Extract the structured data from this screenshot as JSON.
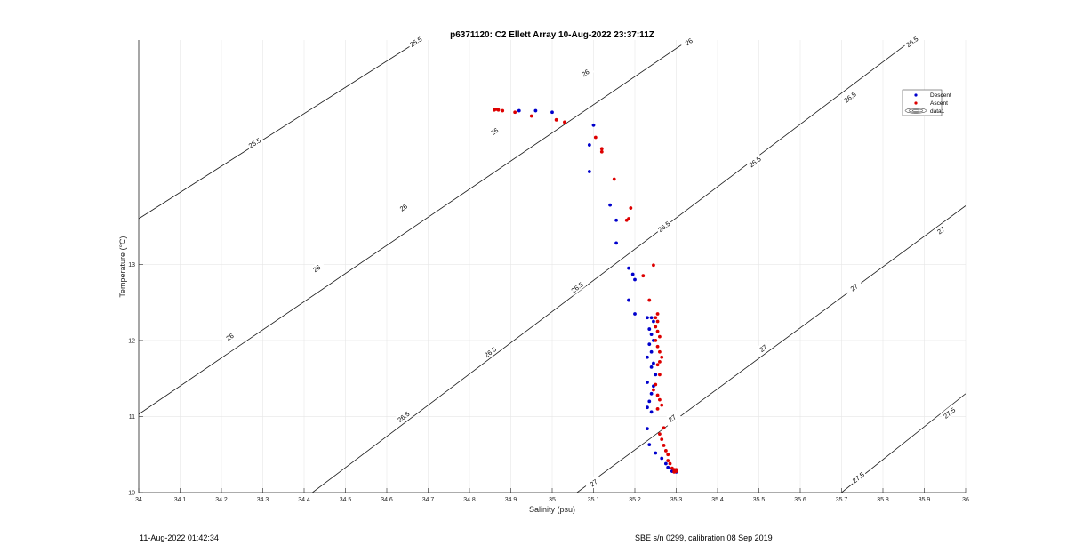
{
  "footer": {
    "timestamp": "11-Aug-2022 01:42:34",
    "instrument": "SBE s/n 0299, calibration 08 Sep 2019"
  },
  "chart_data": {
    "type": "scatter",
    "title": "p6371120: C2 Ellett Array 10-Aug-2022 23:37:11Z",
    "xlabel": "Salinity (psu)",
    "ylabel": "Temperature (°C)",
    "xlim": [
      34,
      36
    ],
    "ylim": [
      10,
      15.95
    ],
    "x_ticks": [
      "34",
      "34.1",
      "34.2",
      "34.3",
      "34.4",
      "34.5",
      "34.6",
      "34.7",
      "34.8",
      "34.9",
      "35",
      "35.1",
      "35.2",
      "35.3",
      "35.4",
      "35.5",
      "35.6",
      "35.7",
      "35.8",
      "35.9",
      "36"
    ],
    "y_ticks": [
      "10",
      "11",
      "12",
      "13"
    ],
    "grid": true,
    "legend": {
      "position": "top-right",
      "entries": [
        "Descent",
        "Ascent",
        "data1"
      ]
    },
    "colors": {
      "Descent": "#0000cc",
      "Ascent": "#dd0000",
      "contour": "#1a1a1a",
      "grid": "#e6e6e6"
    },
    "contours": [
      {
        "level": "25.5",
        "endpoints": [
          [
            34.0,
            13.6
          ],
          [
            34.68,
            15.95
          ]
        ],
        "labels": [
          [
            34.28,
            14.6
          ],
          [
            34.67,
            15.93
          ]
        ]
      },
      {
        "level": "26",
        "endpoints": [
          [
            34.0,
            11.03
          ],
          [
            35.33,
            15.95
          ]
        ],
        "labels": [
          [
            34.22,
            12.05
          ],
          [
            34.43,
            12.95
          ],
          [
            34.64,
            13.75
          ],
          [
            34.86,
            14.75
          ],
          [
            35.08,
            15.52
          ],
          [
            35.33,
            15.93
          ]
        ]
      },
      {
        "level": "26.5",
        "endpoints": [
          [
            34.42,
            10.0
          ],
          [
            35.87,
            15.95
          ]
        ],
        "labels": [
          [
            34.64,
            11.0
          ],
          [
            34.85,
            11.85
          ],
          [
            35.06,
            12.7
          ],
          [
            35.27,
            13.5
          ],
          [
            35.49,
            14.35
          ],
          [
            35.72,
            15.2
          ],
          [
            35.87,
            15.93
          ]
        ]
      },
      {
        "level": "27",
        "endpoints": [
          [
            35.06,
            10.0
          ],
          [
            36.0,
            13.77
          ]
        ],
        "labels": [
          [
            35.1,
            10.13
          ],
          [
            35.29,
            10.98
          ],
          [
            35.51,
            11.9
          ],
          [
            35.73,
            12.7
          ],
          [
            35.94,
            13.45
          ]
        ]
      },
      {
        "level": "27.5",
        "endpoints": [
          [
            35.7,
            10.0
          ],
          [
            36.0,
            11.3
          ]
        ],
        "labels": [
          [
            35.74,
            10.2
          ],
          [
            35.96,
            11.05
          ]
        ]
      }
    ],
    "series": [
      {
        "name": "Descent",
        "points": [
          [
            34.92,
            15.02
          ],
          [
            34.96,
            15.02
          ],
          [
            35.0,
            15.0
          ],
          [
            35.1,
            14.83
          ],
          [
            35.09,
            14.57
          ],
          [
            35.09,
            14.22
          ],
          [
            35.14,
            13.78
          ],
          [
            35.155,
            13.58
          ],
          [
            35.155,
            13.28
          ],
          [
            35.185,
            12.95
          ],
          [
            35.195,
            12.87
          ],
          [
            35.2,
            12.8
          ],
          [
            35.185,
            12.53
          ],
          [
            35.2,
            12.35
          ],
          [
            35.23,
            12.3
          ],
          [
            35.24,
            12.3
          ],
          [
            35.245,
            12.25
          ],
          [
            35.235,
            12.15
          ],
          [
            35.24,
            12.08
          ],
          [
            35.245,
            12.0
          ],
          [
            35.235,
            11.95
          ],
          [
            35.24,
            11.85
          ],
          [
            35.23,
            11.78
          ],
          [
            35.245,
            11.7
          ],
          [
            35.24,
            11.65
          ],
          [
            35.25,
            11.55
          ],
          [
            35.23,
            11.45
          ],
          [
            35.245,
            11.4
          ],
          [
            35.24,
            11.3
          ],
          [
            35.235,
            11.2
          ],
          [
            35.23,
            11.12
          ],
          [
            35.24,
            11.06
          ],
          [
            35.23,
            10.84
          ],
          [
            35.235,
            10.63
          ],
          [
            35.25,
            10.52
          ],
          [
            35.265,
            10.45
          ],
          [
            35.275,
            10.38
          ],
          [
            35.28,
            10.33
          ],
          [
            35.29,
            10.28
          ],
          [
            35.3,
            10.27
          ]
        ]
      },
      {
        "name": "Ascent",
        "points": [
          [
            34.86,
            15.03
          ],
          [
            34.865,
            15.04
          ],
          [
            34.87,
            15.03
          ],
          [
            34.88,
            15.02
          ],
          [
            34.91,
            15.0
          ],
          [
            34.95,
            14.95
          ],
          [
            35.01,
            14.9
          ],
          [
            35.03,
            14.87
          ],
          [
            35.105,
            14.67
          ],
          [
            35.12,
            14.52
          ],
          [
            35.12,
            14.48
          ],
          [
            35.15,
            14.12
          ],
          [
            35.19,
            13.74
          ],
          [
            35.185,
            13.6
          ],
          [
            35.18,
            13.58
          ],
          [
            35.22,
            12.85
          ],
          [
            35.245,
            12.99
          ],
          [
            35.235,
            12.53
          ],
          [
            35.255,
            12.35
          ],
          [
            35.25,
            12.3
          ],
          [
            35.255,
            12.25
          ],
          [
            35.25,
            12.18
          ],
          [
            35.255,
            12.12
          ],
          [
            35.26,
            12.05
          ],
          [
            35.25,
            12.0
          ],
          [
            35.255,
            11.92
          ],
          [
            35.26,
            11.85
          ],
          [
            35.265,
            11.78
          ],
          [
            35.26,
            11.72
          ],
          [
            35.255,
            11.68
          ],
          [
            35.26,
            11.55
          ],
          [
            35.25,
            11.42
          ],
          [
            35.245,
            11.35
          ],
          [
            35.255,
            11.28
          ],
          [
            35.26,
            11.22
          ],
          [
            35.265,
            11.15
          ],
          [
            35.255,
            11.1
          ],
          [
            35.27,
            10.85
          ],
          [
            35.26,
            10.77
          ],
          [
            35.265,
            10.7
          ],
          [
            35.27,
            10.62
          ],
          [
            35.275,
            10.55
          ],
          [
            35.28,
            10.5
          ],
          [
            35.28,
            10.42
          ],
          [
            35.285,
            10.38
          ],
          [
            35.29,
            10.32
          ],
          [
            35.295,
            10.3
          ],
          [
            35.3,
            10.28
          ],
          [
            35.3,
            10.3
          ],
          [
            35.295,
            10.27
          ]
        ]
      }
    ]
  }
}
